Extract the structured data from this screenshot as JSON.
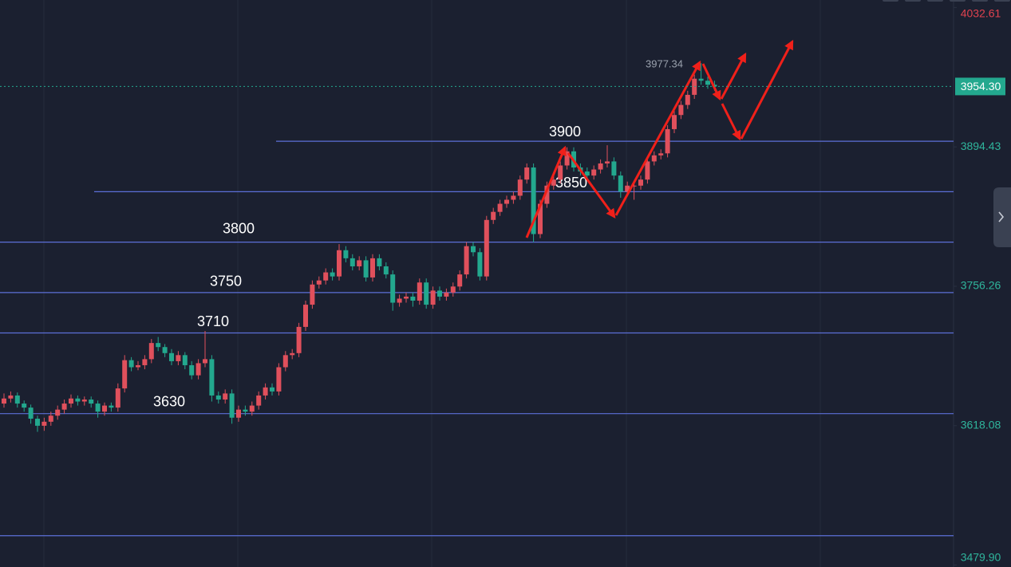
{
  "chart_data": {
    "type": "candlestick",
    "ylim": [
      3478,
      4040
    ],
    "yticks": [
      4032.61,
      3894.43,
      3756.26,
      3618.08,
      {
        "value": 3479.9,
        "label": "3479.90"
      }
    ],
    "ytick_colors": [
      "#e0424f",
      "#2fb59c",
      "#2fb59c",
      "#2fb59c",
      "#2fb59c"
    ],
    "up_color": "#e0505c",
    "down_color": "#23a88e",
    "levels": [
      3900,
      3850,
      3800,
      3750,
      3710,
      3630
    ],
    "unlabeled_levels": [
      3509
    ],
    "level_color": "#5c6fd8",
    "last_price": {
      "value": 3954.3,
      "label": "3954.30"
    },
    "high_annotation": 3977.34,
    "candles": [
      [
        3640,
        3650,
        3636,
        3645
      ],
      [
        3645,
        3652,
        3641,
        3648
      ],
      [
        3648,
        3651,
        3636,
        3640
      ],
      [
        3640,
        3643,
        3632,
        3636
      ],
      [
        3636,
        3639,
        3620,
        3625
      ],
      [
        3625,
        3628,
        3612,
        3618
      ],
      [
        3618,
        3626,
        3613,
        3622
      ],
      [
        3622,
        3632,
        3618,
        3628
      ],
      [
        3628,
        3638,
        3624,
        3634
      ],
      [
        3634,
        3644,
        3630,
        3640
      ],
      [
        3640,
        3649,
        3636,
        3645
      ],
      [
        3645,
        3648,
        3638,
        3642
      ],
      [
        3642,
        3647,
        3638,
        3644
      ],
      [
        3644,
        3647,
        3636,
        3640
      ],
      [
        3640,
        3643,
        3626,
        3632
      ],
      [
        3632,
        3641,
        3628,
        3638
      ],
      [
        3638,
        3641,
        3632,
        3636
      ],
      [
        3636,
        3660,
        3632,
        3655
      ],
      [
        3655,
        3688,
        3651,
        3683
      ],
      [
        3683,
        3686,
        3672,
        3676
      ],
      [
        3676,
        3682,
        3673,
        3678
      ],
      [
        3678,
        3688,
        3674,
        3684
      ],
      [
        3684,
        3704,
        3680,
        3700
      ],
      [
        3700,
        3706,
        3692,
        3696
      ],
      [
        3696,
        3699,
        3686,
        3690
      ],
      [
        3690,
        3694,
        3678,
        3682
      ],
      [
        3682,
        3692,
        3678,
        3688
      ],
      [
        3688,
        3691,
        3674,
        3678
      ],
      [
        3678,
        3682,
        3664,
        3668
      ],
      [
        3668,
        3684,
        3664,
        3680
      ],
      [
        3680,
        3712,
        3676,
        3684
      ],
      [
        3684,
        3688,
        3642,
        3648
      ],
      [
        3648,
        3652,
        3640,
        3644
      ],
      [
        3644,
        3654,
        3640,
        3650
      ],
      [
        3650,
        3654,
        3620,
        3626
      ],
      [
        3626,
        3638,
        3622,
        3634
      ],
      [
        3634,
        3638,
        3628,
        3632
      ],
      [
        3632,
        3642,
        3628,
        3638
      ],
      [
        3638,
        3652,
        3634,
        3648
      ],
      [
        3648,
        3660,
        3644,
        3656
      ],
      [
        3656,
        3660,
        3648,
        3652
      ],
      [
        3652,
        3680,
        3648,
        3676
      ],
      [
        3676,
        3692,
        3672,
        3688
      ],
      [
        3688,
        3694,
        3684,
        3690
      ],
      [
        3690,
        3720,
        3686,
        3716
      ],
      [
        3716,
        3742,
        3712,
        3738
      ],
      [
        3738,
        3762,
        3734,
        3758
      ],
      [
        3758,
        3766,
        3754,
        3762
      ],
      [
        3762,
        3774,
        3758,
        3770
      ],
      [
        3770,
        3774,
        3762,
        3766
      ],
      [
        3766,
        3798,
        3762,
        3792
      ],
      [
        3792,
        3796,
        3780,
        3784
      ],
      [
        3784,
        3788,
        3772,
        3776
      ],
      [
        3776,
        3786,
        3772,
        3782
      ],
      [
        3782,
        3786,
        3761,
        3765
      ],
      [
        3765,
        3788,
        3761,
        3784
      ],
      [
        3784,
        3788,
        3772,
        3776
      ],
      [
        3776,
        3780,
        3764,
        3768
      ],
      [
        3768,
        3772,
        3732,
        3740
      ],
      [
        3740,
        3748,
        3736,
        3744
      ],
      [
        3744,
        3750,
        3740,
        3746
      ],
      [
        3746,
        3750,
        3736,
        3742
      ],
      [
        3742,
        3764,
        3738,
        3760
      ],
      [
        3760,
        3764,
        3734,
        3738
      ],
      [
        3738,
        3756,
        3734,
        3752
      ],
      [
        3752,
        3756,
        3742,
        3746
      ],
      [
        3746,
        3754,
        3742,
        3750
      ],
      [
        3750,
        3760,
        3746,
        3756
      ],
      [
        3756,
        3772,
        3752,
        3768
      ],
      [
        3768,
        3800,
        3764,
        3796
      ],
      [
        3796,
        3800,
        3786,
        3790
      ],
      [
        3790,
        3794,
        3762,
        3766
      ],
      [
        3766,
        3826,
        3762,
        3822
      ],
      [
        3822,
        3834,
        3818,
        3830
      ],
      [
        3830,
        3842,
        3826,
        3838
      ],
      [
        3838,
        3846,
        3834,
        3842
      ],
      [
        3842,
        3850,
        3838,
        3846
      ],
      [
        3846,
        3866,
        3842,
        3862
      ],
      [
        3862,
        3878,
        3858,
        3874
      ],
      [
        3874,
        3878,
        3800,
        3808
      ],
      [
        3808,
        3842,
        3804,
        3838
      ],
      [
        3838,
        3860,
        3834,
        3856
      ],
      [
        3856,
        3866,
        3852,
        3862
      ],
      [
        3862,
        3880,
        3858,
        3876
      ],
      [
        3876,
        3894,
        3872,
        3890
      ],
      [
        3890,
        3894,
        3870,
        3874
      ],
      [
        3874,
        3878,
        3866,
        3870
      ],
      [
        3870,
        3874,
        3862,
        3866
      ],
      [
        3866,
        3876,
        3862,
        3872
      ],
      [
        3872,
        3882,
        3868,
        3878
      ],
      [
        3878,
        3896,
        3874,
        3880
      ],
      [
        3880,
        3884,
        3862,
        3866
      ],
      [
        3866,
        3870,
        3844,
        3850
      ],
      [
        3850,
        3860,
        3846,
        3856
      ],
      [
        3856,
        3860,
        3842,
        3856
      ],
      [
        3856,
        3866,
        3852,
        3862
      ],
      [
        3862,
        3884,
        3858,
        3880
      ],
      [
        3880,
        3890,
        3876,
        3886
      ],
      [
        3886,
        3892,
        3882,
        3888
      ],
      [
        3888,
        3916,
        3884,
        3912
      ],
      [
        3912,
        3930,
        3908,
        3926
      ],
      [
        3926,
        3940,
        3922,
        3936
      ],
      [
        3936,
        3950,
        3932,
        3946
      ],
      [
        3946,
        3966,
        3942,
        3962
      ],
      [
        3962,
        3977.34,
        3956,
        3960
      ],
      [
        3960,
        3964,
        3952,
        3956
      ],
      [
        3956,
        3960,
        3950,
        3954.3
      ]
    ]
  }
}
